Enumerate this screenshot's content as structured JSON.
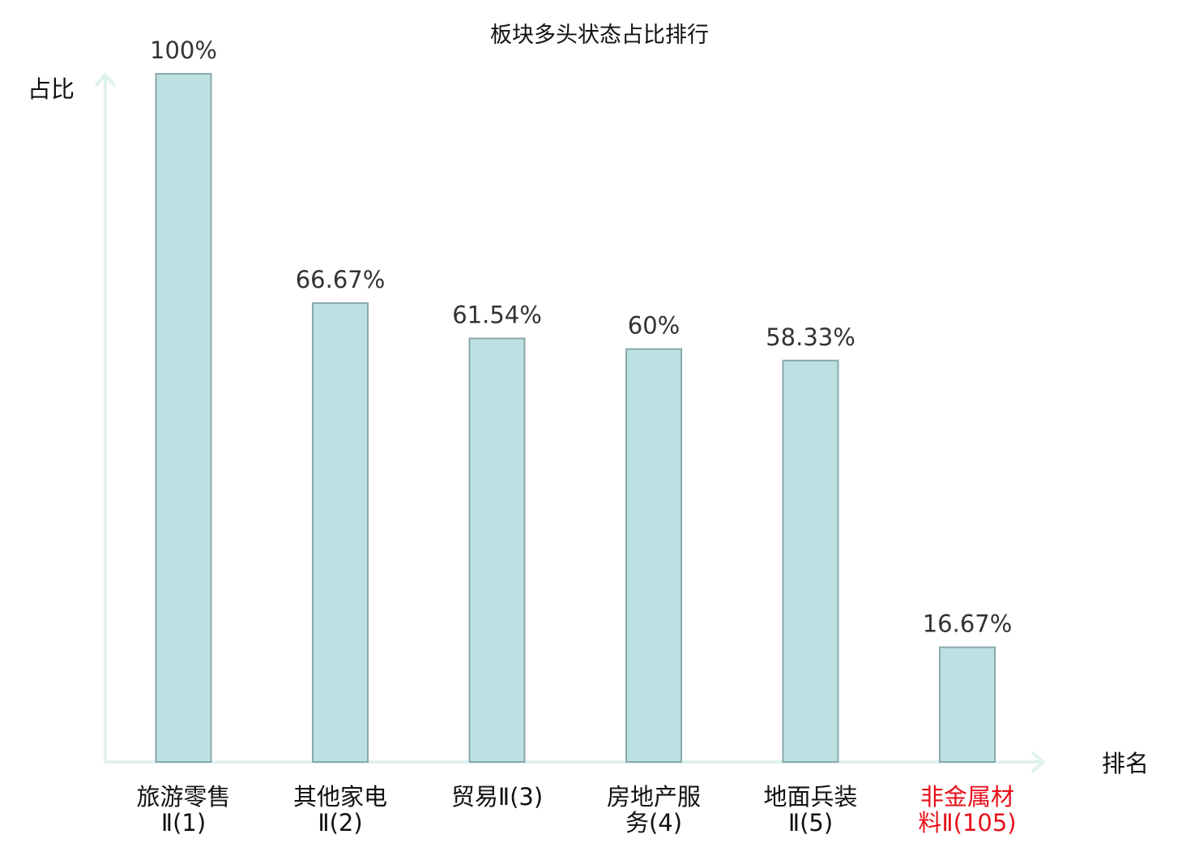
{
  "chart_data": {
    "type": "bar",
    "title": "板块多头状态占比排行",
    "ylabel": "占比",
    "xlabel": "排名",
    "ylim": [
      0,
      100
    ],
    "grid": false,
    "categories": [
      [
        "旅游零售",
        "Ⅱ(1)"
      ],
      [
        "其他家电",
        "Ⅱ(2)"
      ],
      [
        "贸易Ⅱ(3)"
      ],
      [
        "房地产服",
        "务(4)"
      ],
      [
        "地面兵装",
        "Ⅱ(5)"
      ],
      [
        "非金属材",
        "料Ⅱ(105)"
      ]
    ],
    "values": [
      100,
      66.67,
      61.54,
      60,
      58.33,
      16.67
    ],
    "value_labels": [
      "100%",
      "66.67%",
      "61.54%",
      "60%",
      "58.33%",
      "16.67%"
    ],
    "highlight_index": 5,
    "colors": {
      "bar_fill": "#bde0e3",
      "bar_stroke": "#8aa9ac",
      "axis": "#e0f2ef",
      "text": "#111111",
      "value_text": "#333333",
      "highlight_text": "#e8101a"
    }
  }
}
